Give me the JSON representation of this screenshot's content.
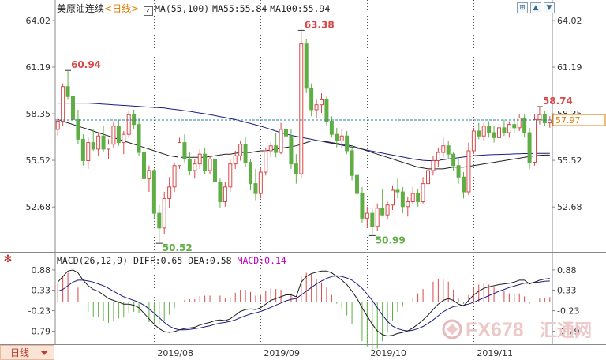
{
  "header": {
    "product_name": "美原油连续",
    "timeframe": "<日线>",
    "ma_header": "MA(55,100)",
    "ma55_text": "MA55:55.84",
    "ma100_text": "MA100:55.94"
  },
  "macd_header": {
    "params": "MACD(26,12,9)",
    "diff_text": "DIFF:0.65",
    "dea_text": "DEA:0.58",
    "macd_text": "MACD:0.14"
  },
  "timeframe_tab": {
    "label": "日线"
  },
  "watermark": {
    "text": "FX678",
    "cn": "汇通网"
  },
  "colors": {
    "up": "#d94848",
    "down": "#5fae45",
    "ma55": "#1e1e1e",
    "ma100": "#1c1c80",
    "last_price_line": "#2a7f9e",
    "last_price_box": "#e07b00",
    "diff": "#1e1e1e",
    "dea": "#1c1c80"
  },
  "chart_data": {
    "type": "candlestick",
    "price_axis": {
      "ticks": [
        "64.02",
        "61.19",
        "58.35",
        "55.52",
        "52.68"
      ],
      "range": [
        50.0,
        64.6
      ]
    },
    "macd_axis": {
      "ticks": [
        "0.88",
        "0.33",
        "-0.23",
        "-0.79"
      ],
      "range": [
        -1.1,
        1.05
      ]
    },
    "x_labels": [
      "2019/08",
      "2019/09",
      "2019/10",
      "2019/11"
    ],
    "x_label_index": [
      19,
      40,
      61,
      82
    ],
    "current_price": "57.97",
    "current_price_value": 57.97,
    "annotations": [
      {
        "index": 2,
        "value": 60.94,
        "label": "60.94",
        "kind": "high"
      },
      {
        "index": 20,
        "value": 50.52,
        "label": "50.52",
        "kind": "low"
      },
      {
        "index": 48,
        "value": 63.38,
        "label": "63.38",
        "kind": "high"
      },
      {
        "index": 62,
        "value": 50.99,
        "label": "50.99",
        "kind": "low"
      },
      {
        "index": 95,
        "value": 58.74,
        "label": "58.74",
        "kind": "high"
      }
    ],
    "ohlc": [
      [
        57.4,
        58.1,
        57.0,
        57.9
      ],
      [
        57.9,
        60.2,
        57.6,
        60.0
      ],
      [
        60.0,
        60.94,
        59.2,
        59.4
      ],
      [
        59.4,
        60.4,
        57.8,
        58.0
      ],
      [
        58.0,
        58.6,
        56.5,
        56.8
      ],
      [
        56.8,
        57.1,
        55.2,
        55.5
      ],
      [
        55.5,
        56.9,
        55.0,
        56.6
      ],
      [
        56.6,
        57.4,
        56.1,
        56.2
      ],
      [
        56.2,
        57.2,
        55.8,
        57.0
      ],
      [
        57.0,
        57.6,
        56.0,
        56.2
      ],
      [
        56.2,
        56.8,
        55.6,
        56.5
      ],
      [
        56.5,
        57.9,
        56.3,
        57.6
      ],
      [
        57.6,
        58.0,
        56.4,
        56.6
      ],
      [
        56.6,
        57.3,
        55.9,
        57.1
      ],
      [
        57.1,
        58.5,
        56.9,
        58.3
      ],
      [
        58.3,
        58.6,
        57.4,
        57.7
      ],
      [
        57.7,
        58.1,
        55.8,
        56.0
      ],
      [
        56.0,
        56.3,
        54.1,
        54.4
      ],
      [
        54.4,
        55.2,
        53.6,
        54.9
      ],
      [
        54.9,
        55.0,
        52.0,
        52.3
      ],
      [
        52.3,
        52.8,
        50.52,
        51.4
      ],
      [
        51.4,
        53.6,
        51.0,
        53.2
      ],
      [
        53.2,
        54.5,
        52.6,
        53.9
      ],
      [
        53.9,
        55.4,
        53.6,
        55.2
      ],
      [
        55.2,
        56.9,
        55.0,
        56.6
      ],
      [
        56.6,
        57.1,
        55.4,
        55.6
      ],
      [
        55.6,
        56.0,
        54.6,
        54.9
      ],
      [
        54.9,
        55.6,
        54.4,
        55.3
      ],
      [
        55.3,
        56.2,
        55.0,
        55.9
      ],
      [
        55.9,
        56.3,
        54.7,
        54.9
      ],
      [
        54.9,
        55.8,
        54.7,
        55.6
      ],
      [
        55.6,
        56.1,
        54.0,
        54.2
      ],
      [
        54.2,
        54.4,
        52.6,
        53.0
      ],
      [
        53.0,
        54.2,
        52.7,
        53.9
      ],
      [
        53.9,
        55.6,
        53.6,
        55.3
      ],
      [
        55.3,
        56.1,
        55.0,
        55.8
      ],
      [
        55.8,
        56.7,
        55.5,
        56.5
      ],
      [
        56.5,
        56.9,
        55.1,
        55.4
      ],
      [
        55.4,
        55.6,
        53.7,
        54.1
      ],
      [
        54.1,
        55.0,
        53.1,
        53.5
      ],
      [
        53.5,
        55.1,
        53.2,
        54.8
      ],
      [
        54.8,
        56.3,
        54.6,
        56.1
      ],
      [
        56.1,
        56.6,
        55.7,
        56.4
      ],
      [
        56.4,
        57.2,
        55.7,
        56.0
      ],
      [
        56.0,
        57.8,
        55.9,
        57.4
      ],
      [
        57.4,
        58.2,
        56.7,
        57.0
      ],
      [
        57.0,
        57.4,
        55.0,
        55.3
      ],
      [
        55.3,
        55.9,
        54.1,
        54.7
      ],
      [
        54.7,
        63.38,
        54.4,
        62.6
      ],
      [
        62.6,
        62.9,
        59.6,
        59.9
      ],
      [
        59.9,
        60.2,
        58.2,
        58.6
      ],
      [
        58.6,
        59.2,
        58.1,
        58.9
      ],
      [
        58.9,
        59.6,
        58.4,
        59.2
      ],
      [
        59.2,
        59.4,
        57.6,
        57.9
      ],
      [
        57.9,
        58.2,
        56.9,
        57.1
      ],
      [
        57.1,
        57.5,
        56.3,
        56.7
      ],
      [
        56.7,
        57.4,
        56.3,
        57.0
      ],
      [
        57.0,
        57.3,
        55.9,
        56.1
      ],
      [
        56.1,
        56.4,
        54.3,
        54.6
      ],
      [
        54.6,
        54.9,
        53.1,
        53.5
      ],
      [
        53.5,
        53.9,
        51.7,
        52.0
      ],
      [
        52.0,
        52.7,
        51.4,
        52.3
      ],
      [
        52.3,
        52.6,
        50.99,
        51.5
      ],
      [
        51.5,
        52.9,
        51.2,
        52.6
      ],
      [
        52.6,
        53.8,
        52.1,
        52.2
      ],
      [
        52.2,
        53.0,
        51.9,
        52.8
      ],
      [
        52.8,
        54.0,
        52.5,
        53.7
      ],
      [
        53.7,
        54.4,
        53.2,
        53.6
      ],
      [
        53.6,
        53.9,
        52.3,
        52.7
      ],
      [
        52.7,
        53.3,
        52.1,
        53.0
      ],
      [
        53.0,
        53.9,
        52.8,
        53.5
      ],
      [
        53.5,
        53.8,
        52.7,
        53.0
      ],
      [
        53.0,
        54.5,
        52.9,
        54.1
      ],
      [
        54.1,
        55.2,
        53.8,
        54.9
      ],
      [
        54.9,
        55.8,
        54.6,
        55.5
      ],
      [
        55.5,
        56.3,
        55.1,
        56.0
      ],
      [
        56.0,
        56.9,
        55.7,
        56.4
      ],
      [
        56.4,
        56.7,
        55.6,
        55.9
      ],
      [
        55.9,
        56.0,
        54.9,
        55.2
      ],
      [
        55.2,
        55.6,
        54.1,
        54.5
      ],
      [
        54.5,
        54.8,
        53.2,
        53.6
      ],
      [
        53.6,
        56.6,
        53.4,
        56.1
      ],
      [
        56.1,
        57.5,
        55.9,
        57.3
      ],
      [
        57.3,
        57.8,
        56.8,
        57.0
      ],
      [
        57.0,
        57.8,
        56.7,
        57.6
      ],
      [
        57.6,
        57.9,
        56.9,
        57.2
      ],
      [
        57.2,
        57.6,
        56.6,
        56.9
      ],
      [
        56.9,
        57.8,
        56.7,
        57.5
      ],
      [
        57.5,
        58.0,
        57.0,
        57.2
      ],
      [
        57.2,
        57.9,
        56.9,
        57.7
      ],
      [
        57.7,
        58.1,
        57.2,
        57.5
      ],
      [
        57.5,
        58.3,
        57.3,
        58.1
      ],
      [
        58.1,
        58.3,
        56.9,
        57.2
      ],
      [
        57.2,
        57.5,
        55.0,
        55.4
      ],
      [
        55.4,
        58.3,
        55.2,
        58.0
      ],
      [
        58.0,
        58.74,
        57.7,
        58.3
      ],
      [
        58.3,
        58.5,
        57.6,
        57.8
      ],
      [
        57.8,
        58.2,
        57.5,
        57.97
      ]
    ],
    "ma55": [
      58.0,
      57.9,
      57.8,
      57.7,
      57.6,
      57.5,
      57.4,
      57.3,
      57.2,
      57.1,
      57.0,
      56.9,
      56.8,
      56.7,
      56.6,
      56.5,
      56.4,
      56.3,
      56.2,
      56.1,
      56.0,
      55.9,
      55.8,
      55.75,
      55.7,
      55.7,
      55.7,
      55.7,
      55.7,
      55.7,
      55.75,
      55.8,
      55.85,
      55.9,
      55.9,
      55.95,
      56.0,
      56.0,
      56.0,
      56.05,
      56.1,
      56.1,
      56.15,
      56.2,
      56.25,
      56.3,
      56.35,
      56.4,
      56.5,
      56.6,
      56.7,
      56.7,
      56.7,
      56.65,
      56.6,
      56.55,
      56.5,
      56.45,
      56.4,
      56.3,
      56.2,
      56.1,
      56.0,
      55.9,
      55.8,
      55.7,
      55.6,
      55.5,
      55.4,
      55.3,
      55.2,
      55.1,
      55.05,
      55.0,
      55.0,
      55.0,
      55.0,
      55.05,
      55.1,
      55.1,
      55.1,
      55.15,
      55.2,
      55.25,
      55.3,
      55.35,
      55.4,
      55.45,
      55.5,
      55.55,
      55.6,
      55.65,
      55.7,
      55.75,
      55.8,
      55.82,
      55.84,
      55.84
    ],
    "ma100": [
      59.0,
      59.0,
      59.0,
      59.0,
      59.0,
      59.0,
      59.0,
      58.98,
      58.96,
      58.94,
      58.92,
      58.9,
      58.88,
      58.86,
      58.84,
      58.82,
      58.8,
      58.78,
      58.76,
      58.74,
      58.72,
      58.7,
      58.66,
      58.62,
      58.58,
      58.54,
      58.5,
      58.45,
      58.4,
      58.35,
      58.3,
      58.24,
      58.18,
      58.12,
      58.06,
      58.0,
      57.92,
      57.84,
      57.76,
      57.68,
      57.6,
      57.5,
      57.4,
      57.3,
      57.2,
      57.12,
      57.04,
      56.98,
      56.92,
      56.86,
      56.8,
      56.74,
      56.68,
      56.62,
      56.56,
      56.5,
      56.44,
      56.38,
      56.32,
      56.26,
      56.2,
      56.14,
      56.08,
      56.02,
      55.96,
      55.9,
      55.84,
      55.78,
      55.72,
      55.66,
      55.6,
      55.56,
      55.52,
      55.5,
      55.5,
      55.52,
      55.56,
      55.6,
      55.64,
      55.68,
      55.72,
      55.76,
      55.8,
      55.82,
      55.84,
      55.86,
      55.87,
      55.88,
      55.89,
      55.9,
      55.91,
      55.92,
      55.93,
      55.93,
      55.94,
      55.94,
      55.94,
      55.94
    ],
    "diff": [
      0.55,
      0.7,
      0.85,
      0.88,
      0.8,
      0.6,
      0.45,
      0.35,
      0.3,
      0.2,
      0.1,
      0.05,
      0.0,
      -0.05,
      -0.05,
      -0.08,
      -0.15,
      -0.3,
      -0.45,
      -0.6,
      -0.72,
      -0.8,
      -0.82,
      -0.8,
      -0.75,
      -0.72,
      -0.7,
      -0.68,
      -0.62,
      -0.58,
      -0.55,
      -0.5,
      -0.48,
      -0.5,
      -0.45,
      -0.35,
      -0.25,
      -0.2,
      -0.18,
      -0.2,
      -0.15,
      -0.05,
      0.05,
      0.1,
      0.15,
      0.2,
      0.2,
      0.15,
      0.55,
      0.7,
      0.78,
      0.82,
      0.85,
      0.85,
      0.8,
      0.7,
      0.6,
      0.48,
      0.3,
      0.1,
      -0.15,
      -0.38,
      -0.6,
      -0.78,
      -0.88,
      -0.92,
      -0.9,
      -0.85,
      -0.82,
      -0.78,
      -0.7,
      -0.6,
      -0.48,
      -0.35,
      -0.2,
      -0.05,
      0.05,
      0.1,
      0.05,
      -0.05,
      -0.1,
      0.05,
      0.2,
      0.3,
      0.38,
      0.42,
      0.45,
      0.48,
      0.5,
      0.52,
      0.55,
      0.6,
      0.6,
      0.5,
      0.55,
      0.6,
      0.63,
      0.65
    ],
    "dea": [
      0.3,
      0.35,
      0.45,
      0.55,
      0.6,
      0.6,
      0.58,
      0.55,
      0.5,
      0.45,
      0.38,
      0.3,
      0.22,
      0.15,
      0.1,
      0.05,
      0.0,
      -0.08,
      -0.18,
      -0.3,
      -0.42,
      -0.55,
      -0.65,
      -0.72,
      -0.75,
      -0.75,
      -0.74,
      -0.72,
      -0.7,
      -0.67,
      -0.64,
      -0.6,
      -0.57,
      -0.55,
      -0.52,
      -0.48,
      -0.42,
      -0.37,
      -0.32,
      -0.29,
      -0.25,
      -0.2,
      -0.14,
      -0.08,
      -0.02,
      0.04,
      0.08,
      0.1,
      0.2,
      0.3,
      0.4,
      0.5,
      0.58,
      0.65,
      0.7,
      0.72,
      0.7,
      0.66,
      0.6,
      0.5,
      0.38,
      0.22,
      0.05,
      -0.15,
      -0.35,
      -0.52,
      -0.65,
      -0.72,
      -0.76,
      -0.78,
      -0.76,
      -0.72,
      -0.66,
      -0.58,
      -0.48,
      -0.37,
      -0.26,
      -0.18,
      -0.12,
      -0.1,
      -0.08,
      -0.05,
      0.0,
      0.06,
      0.12,
      0.18,
      0.24,
      0.3,
      0.35,
      0.4,
      0.44,
      0.48,
      0.52,
      0.52,
      0.54,
      0.55,
      0.57,
      0.58
    ]
  }
}
